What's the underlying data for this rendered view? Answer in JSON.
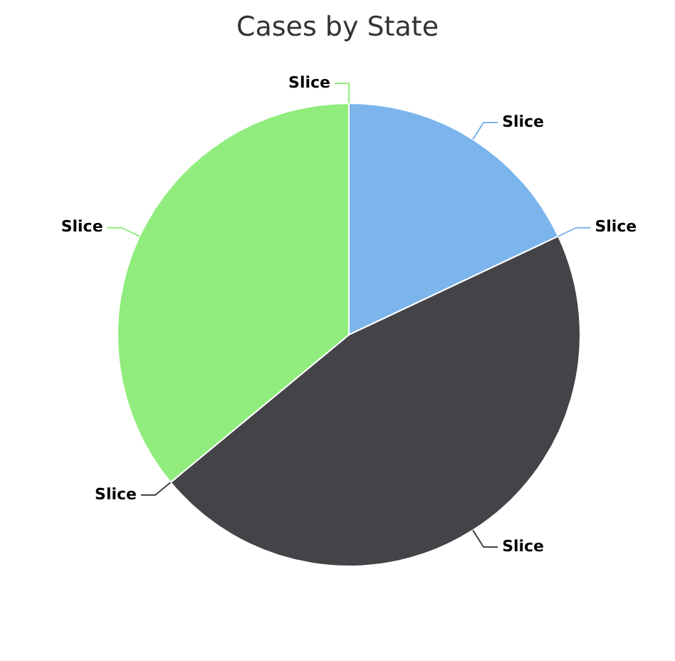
{
  "chart_data": {
    "type": "pie",
    "title": "Cases by State",
    "categories": [
      "Slice",
      "Slice",
      "Slice",
      "Slice",
      "Slice",
      "Slice"
    ],
    "values": [
      18,
      0,
      46,
      0,
      36,
      0
    ],
    "colors": [
      "#7cb5ec",
      "#7cb5ec",
      "#434348",
      "#434348",
      "#90ed7d",
      "#90ed7d"
    ]
  }
}
